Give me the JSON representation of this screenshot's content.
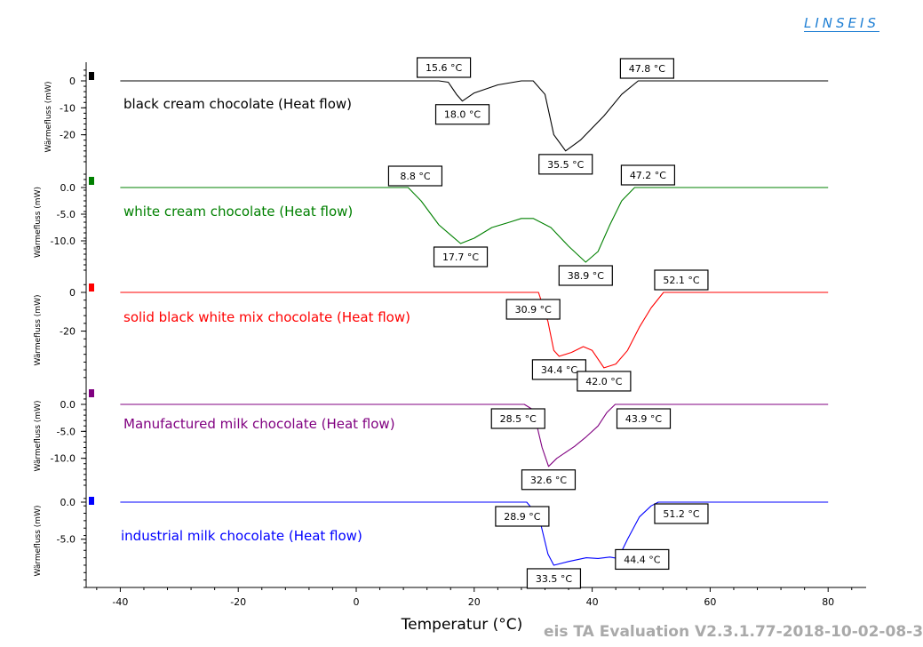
{
  "header": {
    "logo_text": "LINSEIS"
  },
  "footer": {
    "version_text": "eis TA Evaluation V2.3.1.77-2018-10-02-08-3"
  },
  "chart_data": {
    "type": "line",
    "xlabel": "Temperatur (°C)",
    "xlim": [
      -45,
      86
    ],
    "x_ticks": [
      "-40",
      "-20",
      "0",
      "20",
      "40",
      "60",
      "80"
    ],
    "x_tick_values": [
      -40,
      -20,
      0,
      20,
      40,
      60,
      80
    ],
    "grid": false,
    "panels": [
      {
        "name": "black cream chocolate (Heat flow)",
        "color": "#000000",
        "ylabel": "Wärmefluss (mW)",
        "ylim": [
          -31,
          6
        ],
        "y_ticks": [
          "0",
          "-10",
          "-20"
        ],
        "y_tick_values": [
          0,
          -10,
          -20
        ],
        "x": [
          -40,
          14,
          15.6,
          17,
          18,
          20,
          24,
          28,
          30,
          32,
          33.5,
          35.5,
          38,
          42,
          45,
          47.8,
          80
        ],
        "y": [
          0,
          0,
          -0.5,
          -5,
          -7.5,
          -4.5,
          -1.5,
          0,
          0,
          -5,
          -20,
          -26,
          -22,
          -13,
          -5,
          0,
          0
        ],
        "annotations": [
          {
            "x": 15.6,
            "y": 0,
            "label": "15.6 °C"
          },
          {
            "x": 18.0,
            "y": -7.5,
            "label": "18.0 °C"
          },
          {
            "x": 35.5,
            "y": -26,
            "label": "35.5 °C"
          },
          {
            "x": 47.8,
            "y": 0,
            "label": "47.8 °C"
          }
        ]
      },
      {
        "name": "white cream chocolate (Heat flow)",
        "color": "#008000",
        "ylabel": "Wärmefluss (mW)",
        "ylim": [
          -15.5,
          2.5
        ],
        "y_ticks": [
          "0.0",
          "-5.0",
          "-10.0"
        ],
        "y_tick_values": [
          0,
          -5,
          -10
        ],
        "x": [
          -40,
          8.8,
          11,
          14,
          17.7,
          20,
          23,
          26,
          28,
          30,
          33,
          36,
          38.9,
          41,
          43,
          45,
          47.2,
          80
        ],
        "y": [
          0,
          0,
          -2.5,
          -7,
          -10.5,
          -9.5,
          -7.5,
          -6.5,
          -5.8,
          -5.8,
          -7.5,
          -11,
          -14,
          -12,
          -7,
          -2.5,
          0,
          0
        ],
        "annotations": [
          {
            "x": 8.8,
            "y": 0,
            "label": "8.8 °C"
          },
          {
            "x": 17.7,
            "y": -10.5,
            "label": "17.7 °C"
          },
          {
            "x": 38.9,
            "y": -14,
            "label": "38.9 °C"
          },
          {
            "x": 47.2,
            "y": 0,
            "label": "47.2 °C"
          }
        ]
      },
      {
        "name": "solid black white mix chocolate (Heat flow)",
        "color": "#ff0000",
        "ylabel": "Wärmefluss (mW)",
        "ylim": [
          -45,
          4
        ],
        "y_ticks": [
          "0",
          "-20"
        ],
        "y_tick_values": [
          0,
          -20
        ],
        "x": [
          -40,
          30.9,
          32.5,
          33.5,
          34.4,
          36.5,
          38.5,
          40,
          42,
          44,
          46,
          48,
          50,
          52.1,
          80
        ],
        "y": [
          0,
          0,
          -15,
          -30,
          -33,
          -31,
          -28,
          -30,
          -39,
          -37,
          -30,
          -18,
          -8,
          0,
          0
        ],
        "annotations": [
          {
            "x": 30.9,
            "y": 0,
            "label": "30.9 °C"
          },
          {
            "x": 34.4,
            "y": -33,
            "label": "34.4 °C"
          },
          {
            "x": 42.0,
            "y": -39,
            "label": "42.0 °C"
          },
          {
            "x": 52.1,
            "y": 0,
            "label": "52.1 °C"
          }
        ]
      },
      {
        "name": "Manufactured milk chocolate (Heat flow)",
        "color": "#800080",
        "ylabel": "Wärmefluss (mW)",
        "ylim": [
          -15,
          2
        ],
        "y_ticks": [
          "0.0",
          "-5.0",
          "-10.0"
        ],
        "y_tick_values": [
          0,
          -5,
          -10
        ],
        "x": [
          -40,
          28.5,
          30,
          31.5,
          32.6,
          34,
          37,
          39,
          41,
          42.5,
          43.9,
          80
        ],
        "y": [
          0,
          0,
          -1,
          -8,
          -11.5,
          -10,
          -7.8,
          -6,
          -4,
          -1.5,
          0,
          0
        ],
        "annotations": [
          {
            "x": 28.5,
            "y": 0,
            "label": "28.5 °C"
          },
          {
            "x": 32.6,
            "y": -11.5,
            "label": "32.6 °C"
          },
          {
            "x": 43.9,
            "y": 0,
            "label": "43.9 °C"
          }
        ]
      },
      {
        "name": "industrial milk chocolate (Heat flow)",
        "color": "#0000ff",
        "ylabel": "Wärmefluss (mW)",
        "ylim": [
          -11.5,
          1.5
        ],
        "y_ticks": [
          "0.0",
          "-5.0"
        ],
        "y_tick_values": [
          0,
          -5
        ],
        "x": [
          -40,
          28.9,
          31,
          32.5,
          33.5,
          36,
          39,
          41,
          43,
          44.4,
          46,
          48,
          50,
          51.2,
          80
        ],
        "y": [
          0,
          0,
          -2,
          -7,
          -8.5,
          -8,
          -7.5,
          -7.6,
          -7.4,
          -7.6,
          -5,
          -2,
          -0.5,
          0,
          0
        ],
        "annotations": [
          {
            "x": 28.9,
            "y": 0,
            "label": "28.9 °C"
          },
          {
            "x": 33.5,
            "y": -8.5,
            "label": "33.5 °C"
          },
          {
            "x": 44.4,
            "y": -7.6,
            "label": "44.4 °C"
          },
          {
            "x": 51.2,
            "y": 0,
            "label": "51.2 °C"
          }
        ]
      }
    ]
  }
}
